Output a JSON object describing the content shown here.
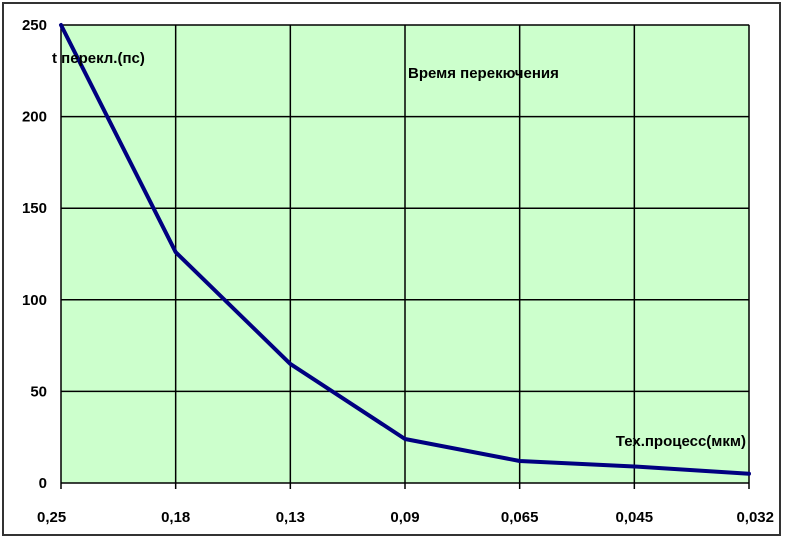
{
  "chart_data": {
    "type": "line",
    "title": "Время перекючения",
    "ylabel": "t перекл.(пс)",
    "xlabel": "Тех.процесс(мкм)",
    "categories": [
      "0,25",
      "0,18",
      "0,13",
      "0,09",
      "0,065",
      "0,045",
      "0,032"
    ],
    "series": [
      {
        "values": [
          250,
          126,
          65,
          24,
          12,
          9,
          5
        ]
      }
    ],
    "ylim": [
      0,
      250
    ],
    "yticks": [
      0,
      50,
      100,
      150,
      200,
      250
    ],
    "grid": true,
    "colors": {
      "plot_bg": "#ccffcc",
      "line": "#000080",
      "grid": "#000000"
    }
  }
}
